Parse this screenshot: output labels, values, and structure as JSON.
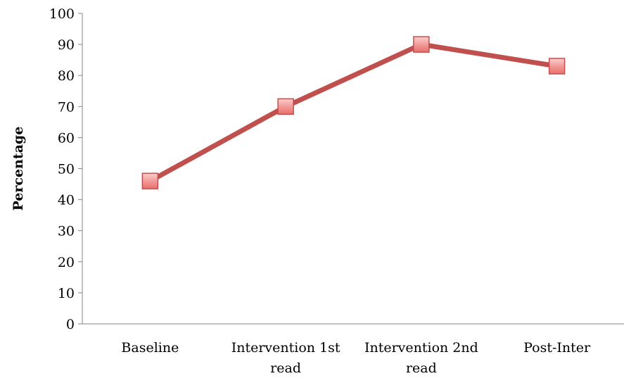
{
  "chart_data": {
    "type": "line",
    "title": "",
    "xlabel": "",
    "ylabel": "Percentage",
    "ylim": [
      0,
      100
    ],
    "yticks": [
      0,
      10,
      20,
      30,
      40,
      50,
      60,
      70,
      80,
      90,
      100
    ],
    "categories": [
      [
        "Baseline"
      ],
      [
        "Intervention 1st",
        "read"
      ],
      [
        "Intervention 2nd",
        "read"
      ],
      [
        "Post-Inter"
      ]
    ],
    "series": [
      {
        "values": [
          46,
          70,
          90,
          83
        ],
        "line_color": "#c0504d",
        "marker": "square",
        "marker_fill": "#f28c8a",
        "marker_edge": "#c0504d"
      }
    ],
    "grid": false,
    "legend": "none"
  }
}
